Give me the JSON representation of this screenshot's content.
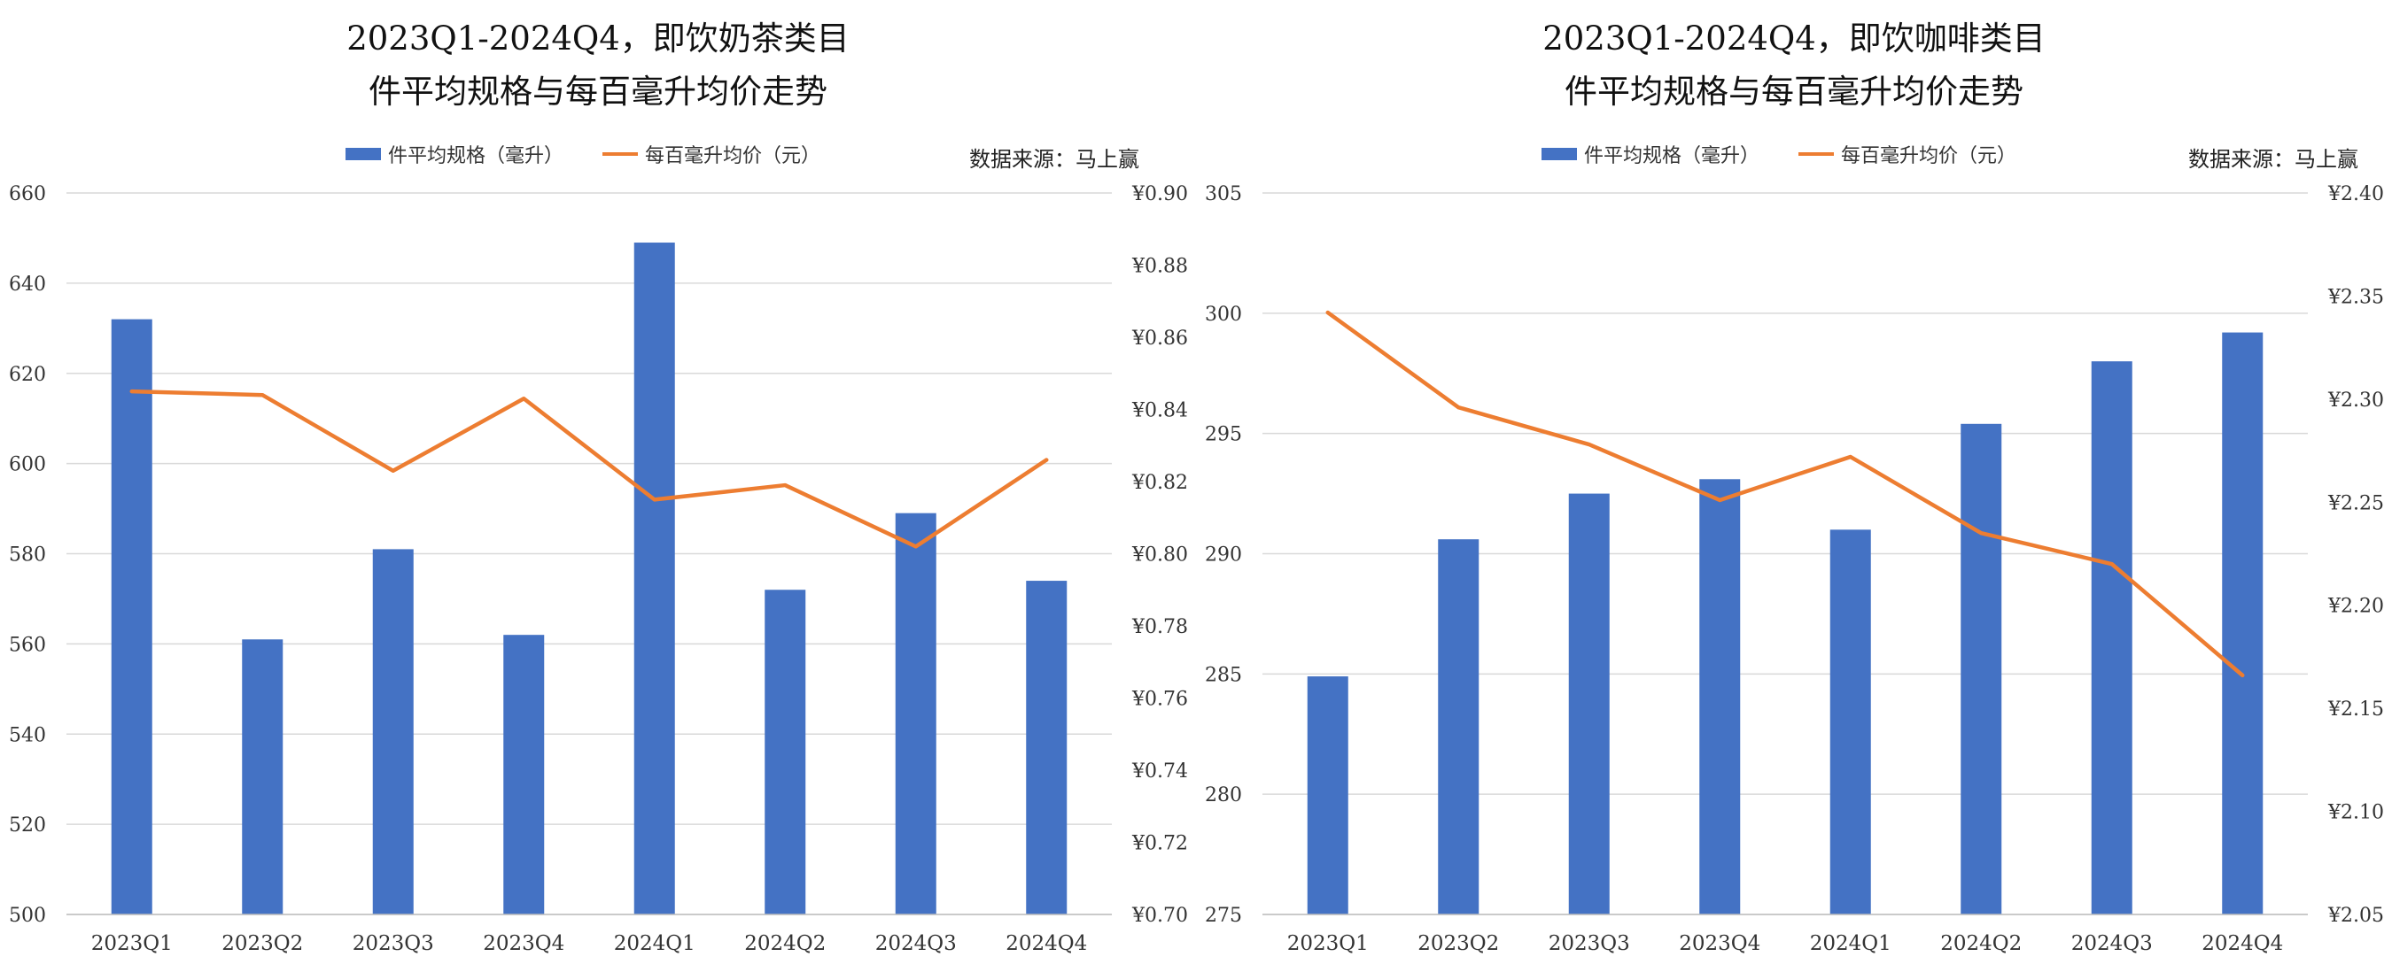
{
  "chart_data": [
    {
      "type": "bar",
      "title_line1": "2023Q1-2024Q4，即饮奶茶类目",
      "title_line2": "件平均规格与每百毫升均价走势",
      "source": "数据来源：马上赢",
      "categories": [
        "2023Q1",
        "2023Q2",
        "2023Q3",
        "2023Q4",
        "2024Q1",
        "2024Q2",
        "2024Q3",
        "2024Q4"
      ],
      "series": [
        {
          "name": "件平均规格（毫升）",
          "type": "bar",
          "axis": "left",
          "color": "#4472C4",
          "values": [
            632,
            561,
            581,
            562,
            649,
            572,
            589,
            574
          ]
        },
        {
          "name": "每百毫升均价（元）",
          "type": "line",
          "axis": "right",
          "color": "#ED7D31",
          "values": [
            0.845,
            0.844,
            0.823,
            0.843,
            0.815,
            0.819,
            0.802,
            0.826
          ]
        }
      ],
      "ylim": [
        500,
        660
      ],
      "yticks": [
        "500",
        "520",
        "540",
        "560",
        "580",
        "600",
        "620",
        "640",
        "660"
      ],
      "y2lim": [
        0.7,
        0.9
      ],
      "y2ticks": [
        "¥0.70",
        "¥0.72",
        "¥0.74",
        "¥0.76",
        "¥0.78",
        "¥0.80",
        "¥0.82",
        "¥0.84",
        "¥0.86",
        "¥0.88",
        "¥0.90"
      ],
      "grid": true,
      "legend": "top"
    },
    {
      "type": "bar",
      "title_line1": "2023Q1-2024Q4，即饮咖啡类目",
      "title_line2": "件平均规格与每百毫升均价走势",
      "source": "数据来源：马上赢",
      "categories": [
        "2023Q1",
        "2023Q2",
        "2023Q3",
        "2023Q4",
        "2024Q1",
        "2024Q2",
        "2024Q3",
        "2024Q4"
      ],
      "series": [
        {
          "name": "件平均规格（毫升）",
          "type": "bar",
          "axis": "left",
          "color": "#4472C4",
          "values": [
            284.9,
            290.6,
            292.5,
            293.1,
            291.0,
            295.4,
            298.0,
            299.2
          ]
        },
        {
          "name": "每百毫升均价（元）",
          "type": "line",
          "axis": "right",
          "color": "#ED7D31",
          "values": [
            2.342,
            2.296,
            2.278,
            2.251,
            2.272,
            2.235,
            2.22,
            2.166
          ]
        }
      ],
      "ylim": [
        275,
        305
      ],
      "yticks": [
        "275",
        "280",
        "285",
        "290",
        "295",
        "300",
        "305"
      ],
      "y2lim": [
        2.05,
        2.4
      ],
      "y2ticks": [
        "¥2.05",
        "¥2.10",
        "¥2.15",
        "¥2.20",
        "¥2.25",
        "¥2.30",
        "¥2.35",
        "¥2.40"
      ],
      "grid": true,
      "legend": "top"
    }
  ]
}
